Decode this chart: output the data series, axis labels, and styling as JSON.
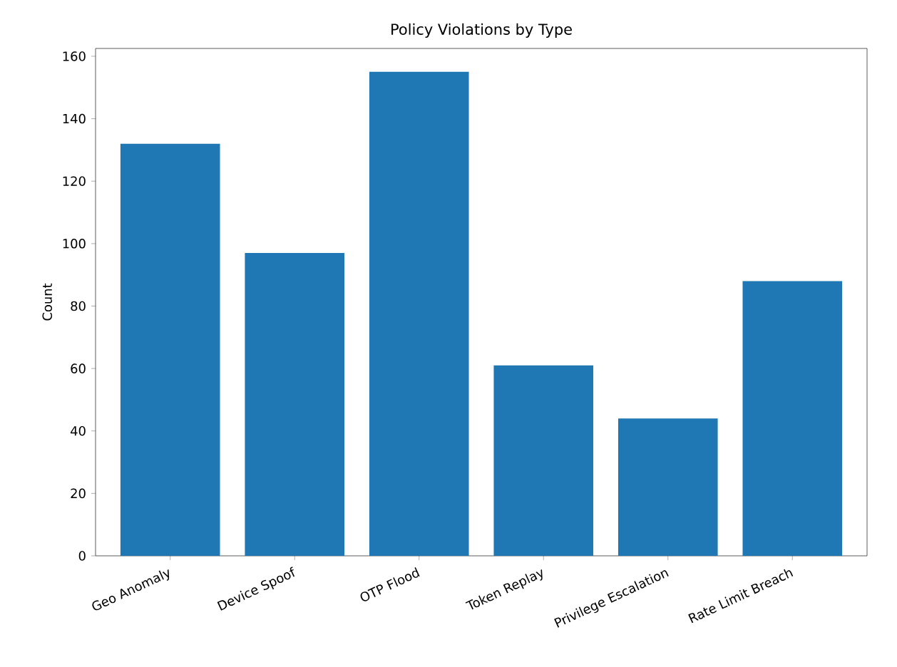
{
  "chart_data": {
    "type": "bar",
    "title": "Policy Violations by Type",
    "ylabel": "Count",
    "categories": [
      "Geo Anomaly",
      "Device Spoof",
      "OTP Flood",
      "Token Replay",
      "Privilege Escalation",
      "Rate Limit Breach"
    ],
    "values": [
      132,
      97,
      155,
      61,
      44,
      88
    ],
    "color": "#1f77b4",
    "ylim": [
      0,
      162.5
    ],
    "yticks": [
      0,
      20,
      40,
      60,
      80,
      100,
      120,
      140,
      160
    ]
  }
}
